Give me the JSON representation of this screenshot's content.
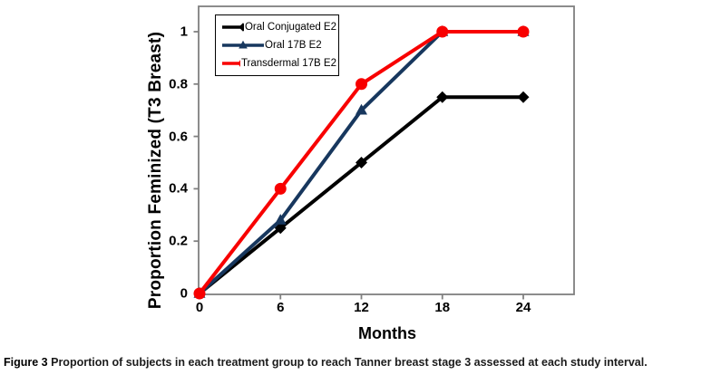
{
  "caption": {
    "label": "Figure 3",
    "text": "Proportion of subjects in each treatment group to reach Tanner breast stage 3 assessed at each study interval."
  },
  "chart_data": {
    "type": "line",
    "title": "",
    "xlabel": "Months",
    "ylabel": "Proportion Feminized (T3 Breast)",
    "x": [
      0,
      6,
      12,
      18,
      24
    ],
    "xticks": [
      0,
      6,
      12,
      18,
      24
    ],
    "xtick_labels": [
      "0",
      "6",
      "12",
      "18",
      "24"
    ],
    "yticks": [
      0,
      0.2,
      0.4,
      0.6,
      0.8,
      1
    ],
    "ytick_labels": [
      "0",
      "0.2",
      "0.4",
      "0.6",
      "0.8",
      "1"
    ],
    "xlim": [
      0,
      27.8
    ],
    "ylim": [
      0,
      1.1
    ],
    "grid": false,
    "legend_position": "top-left-inside",
    "axis_color": "#808080",
    "background_color": "#ffffff",
    "series": [
      {
        "name": "Oral Conjugated E2",
        "marker": "diamond",
        "color": "#000000",
        "values": [
          0,
          0.25,
          0.5,
          0.75,
          0.75
        ]
      },
      {
        "name": "Oral 17B E2",
        "marker": "triangle",
        "color": "#17375E",
        "values": [
          0,
          0.28,
          0.7,
          1,
          1
        ]
      },
      {
        "name": "Transdermal 17B E2",
        "marker": "circle",
        "color": "#F80000",
        "values": [
          0,
          0.4,
          0.8,
          1,
          1
        ]
      }
    ]
  }
}
